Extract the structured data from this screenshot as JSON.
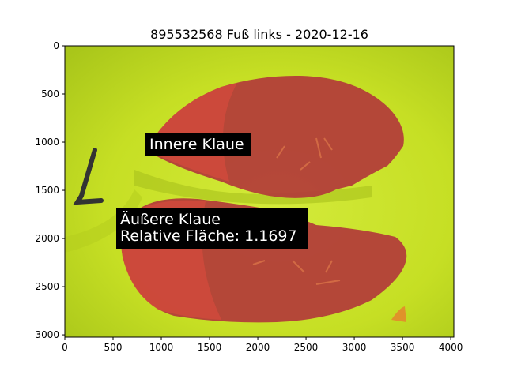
{
  "figure": {
    "title": "895532568 Fuß links - 2020-12-16",
    "x_axis": {
      "range": [
        0,
        4032
      ],
      "ticks": [
        "0",
        "500",
        "1000",
        "1500",
        "2000",
        "2500",
        "3000",
        "3500",
        "4000"
      ],
      "tick_values": [
        0,
        500,
        1000,
        1500,
        2000,
        2500,
        3000,
        3500,
        4000
      ]
    },
    "y_axis": {
      "range": [
        0,
        3024
      ],
      "inverted": true,
      "ticks": [
        "0",
        "500",
        "1000",
        "1500",
        "2000",
        "2500",
        "3000"
      ],
      "tick_values": [
        0,
        500,
        1000,
        1500,
        2000,
        2500,
        3000
      ]
    }
  },
  "annotations": {
    "inner": {
      "line1": "Innere Klaue",
      "x": 870,
      "y": 1030
    },
    "outer": {
      "line1": "Äußere Klaue",
      "line2": "Relative Fläche: 1.1697",
      "x": 580,
      "y": 1980
    }
  },
  "colors": {
    "background_green": "#c9e226",
    "claw_red": "#b23a3a",
    "claw_highlight": "#d45a4a",
    "label_box": "#000000"
  },
  "photo": {
    "subject": "hoof claw sole photograph with red segmentation overlay"
  }
}
